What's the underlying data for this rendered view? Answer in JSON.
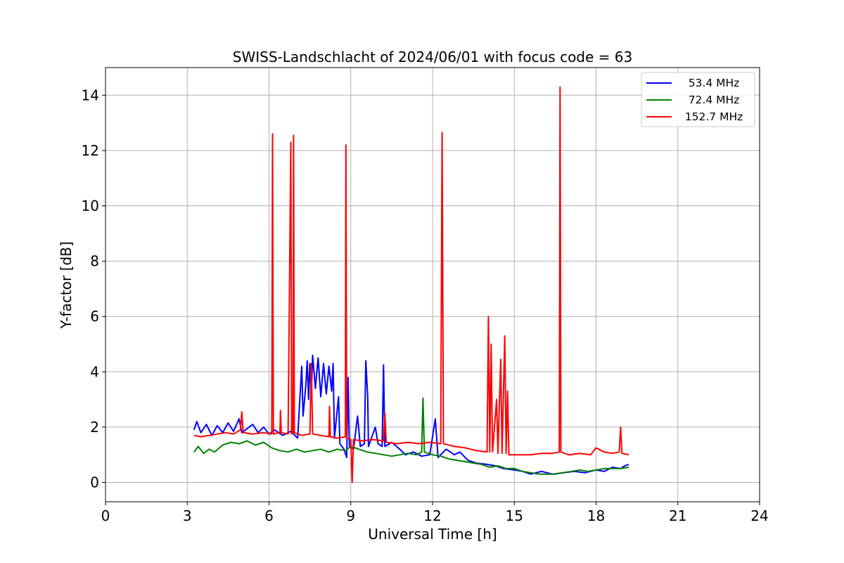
{
  "chart_data": {
    "type": "line",
    "title": "SWISS-Landschlacht of 2024/06/01 with focus code = 63",
    "xlabel": "Universal Time [h]",
    "ylabel": "Y-factor [dB]",
    "xlim": [
      0,
      24
    ],
    "ylim": [
      -0.7,
      15
    ],
    "xticks": [
      0,
      3,
      6,
      9,
      12,
      15,
      18,
      21,
      24
    ],
    "yticks": [
      0,
      2,
      4,
      6,
      8,
      10,
      12,
      14
    ],
    "grid": true,
    "legend_position": "top-right",
    "series": [
      {
        "name": " 53.4 MHz",
        "color": "#0000ff",
        "points": [
          [
            3.25,
            1.9
          ],
          [
            3.35,
            2.2
          ],
          [
            3.5,
            1.8
          ],
          [
            3.7,
            2.1
          ],
          [
            3.9,
            1.7
          ],
          [
            4.1,
            2.05
          ],
          [
            4.3,
            1.8
          ],
          [
            4.5,
            2.15
          ],
          [
            4.7,
            1.85
          ],
          [
            4.9,
            2.3
          ],
          [
            5.0,
            1.8
          ],
          [
            5.2,
            1.95
          ],
          [
            5.4,
            2.1
          ],
          [
            5.6,
            1.8
          ],
          [
            5.8,
            2.0
          ],
          [
            6.0,
            1.75
          ],
          [
            6.2,
            1.9
          ],
          [
            6.5,
            1.7
          ],
          [
            6.8,
            1.85
          ],
          [
            7.05,
            1.6
          ],
          [
            7.2,
            4.2
          ],
          [
            7.25,
            2.4
          ],
          [
            7.35,
            3.5
          ],
          [
            7.4,
            4.4
          ],
          [
            7.45,
            3.0
          ],
          [
            7.5,
            4.3
          ],
          [
            7.55,
            3.2
          ],
          [
            7.6,
            4.6
          ],
          [
            7.7,
            3.4
          ],
          [
            7.8,
            4.5
          ],
          [
            7.9,
            3.1
          ],
          [
            8.0,
            4.3
          ],
          [
            8.1,
            3.2
          ],
          [
            8.2,
            4.2
          ],
          [
            8.3,
            3.3
          ],
          [
            8.35,
            4.3
          ],
          [
            8.4,
            1.6
          ],
          [
            8.55,
            3.1
          ],
          [
            8.6,
            1.4
          ],
          [
            8.75,
            1.2
          ],
          [
            8.85,
            0.9
          ],
          [
            8.9,
            3.8
          ],
          [
            8.95,
            1.3
          ],
          [
            9.1,
            1.2
          ],
          [
            9.25,
            2.4
          ],
          [
            9.35,
            1.3
          ],
          [
            9.5,
            1.4
          ],
          [
            9.55,
            4.4
          ],
          [
            9.62,
            3.1
          ],
          [
            9.65,
            1.3
          ],
          [
            9.9,
            2.0
          ],
          [
            10.0,
            1.4
          ],
          [
            10.15,
            1.3
          ],
          [
            10.2,
            4.25
          ],
          [
            10.25,
            1.3
          ],
          [
            10.5,
            1.45
          ],
          [
            10.8,
            1.2
          ],
          [
            11.0,
            1.0
          ],
          [
            11.3,
            1.1
          ],
          [
            11.6,
            0.95
          ],
          [
            11.9,
            1.0
          ],
          [
            12.1,
            2.3
          ],
          [
            12.2,
            0.9
          ],
          [
            12.5,
            1.2
          ],
          [
            12.8,
            1.0
          ],
          [
            13.0,
            1.1
          ],
          [
            13.3,
            0.8
          ],
          [
            13.6,
            0.7
          ],
          [
            14.0,
            0.65
          ],
          [
            14.3,
            0.6
          ],
          [
            14.6,
            0.5
          ],
          [
            15.0,
            0.45
          ],
          [
            15.3,
            0.4
          ],
          [
            15.6,
            0.3
          ],
          [
            16.0,
            0.4
          ],
          [
            16.4,
            0.3
          ],
          [
            16.8,
            0.35
          ],
          [
            17.2,
            0.4
          ],
          [
            17.6,
            0.35
          ],
          [
            18.0,
            0.45
          ],
          [
            18.3,
            0.4
          ],
          [
            18.6,
            0.55
          ],
          [
            18.9,
            0.5
          ],
          [
            19.05,
            0.6
          ],
          [
            19.2,
            0.65
          ]
        ]
      },
      {
        "name": " 72.4 MHz",
        "color": "#008000",
        "points": [
          [
            3.25,
            1.1
          ],
          [
            3.4,
            1.3
          ],
          [
            3.6,
            1.05
          ],
          [
            3.8,
            1.2
          ],
          [
            4.0,
            1.1
          ],
          [
            4.3,
            1.35
          ],
          [
            4.6,
            1.45
          ],
          [
            4.9,
            1.4
          ],
          [
            5.2,
            1.5
          ],
          [
            5.5,
            1.35
          ],
          [
            5.8,
            1.45
          ],
          [
            6.1,
            1.25
          ],
          [
            6.4,
            1.15
          ],
          [
            6.7,
            1.1
          ],
          [
            7.0,
            1.2
          ],
          [
            7.3,
            1.1
          ],
          [
            7.6,
            1.15
          ],
          [
            7.9,
            1.2
          ],
          [
            8.2,
            1.1
          ],
          [
            8.5,
            1.2
          ],
          [
            8.8,
            1.15
          ],
          [
            9.0,
            1.3
          ],
          [
            9.3,
            1.2
          ],
          [
            9.6,
            1.1
          ],
          [
            9.9,
            1.05
          ],
          [
            10.2,
            1.0
          ],
          [
            10.5,
            0.95
          ],
          [
            10.8,
            1.0
          ],
          [
            11.1,
            1.05
          ],
          [
            11.4,
            1.0
          ],
          [
            11.6,
            1.1
          ],
          [
            11.65,
            3.05
          ],
          [
            11.7,
            1.1
          ],
          [
            12.0,
            1.0
          ],
          [
            12.3,
            0.95
          ],
          [
            12.6,
            0.85
          ],
          [
            12.9,
            0.8
          ],
          [
            13.2,
            0.75
          ],
          [
            13.5,
            0.7
          ],
          [
            13.8,
            0.65
          ],
          [
            14.1,
            0.55
          ],
          [
            14.4,
            0.6
          ],
          [
            14.7,
            0.5
          ],
          [
            15.0,
            0.5
          ],
          [
            15.3,
            0.4
          ],
          [
            15.6,
            0.35
          ],
          [
            15.9,
            0.3
          ],
          [
            16.2,
            0.3
          ],
          [
            16.5,
            0.3
          ],
          [
            16.8,
            0.35
          ],
          [
            17.1,
            0.4
          ],
          [
            17.4,
            0.45
          ],
          [
            17.7,
            0.4
          ],
          [
            18.0,
            0.45
          ],
          [
            18.3,
            0.5
          ],
          [
            18.6,
            0.5
          ],
          [
            18.9,
            0.5
          ],
          [
            19.2,
            0.55
          ]
        ]
      },
      {
        "name": "152.7 MHz",
        "color": "#ff0000",
        "points": [
          [
            3.25,
            1.7
          ],
          [
            3.5,
            1.65
          ],
          [
            3.8,
            1.7
          ],
          [
            4.1,
            1.75
          ],
          [
            4.4,
            1.8
          ],
          [
            4.7,
            1.75
          ],
          [
            4.95,
            1.9
          ],
          [
            5.0,
            2.55
          ],
          [
            5.05,
            1.8
          ],
          [
            5.4,
            1.75
          ],
          [
            5.8,
            1.8
          ],
          [
            6.1,
            1.75
          ],
          [
            6.13,
            12.6
          ],
          [
            6.16,
            1.75
          ],
          [
            6.4,
            1.8
          ],
          [
            6.42,
            2.6
          ],
          [
            6.45,
            1.8
          ],
          [
            6.7,
            1.75
          ],
          [
            6.8,
            12.3
          ],
          [
            6.83,
            1.75
          ],
          [
            6.88,
            1.8
          ],
          [
            6.9,
            12.55
          ],
          [
            6.93,
            1.8
          ],
          [
            7.2,
            1.7
          ],
          [
            7.5,
            1.75
          ],
          [
            7.55,
            4.3
          ],
          [
            7.6,
            1.75
          ],
          [
            7.9,
            1.7
          ],
          [
            8.2,
            1.65
          ],
          [
            8.22,
            2.75
          ],
          [
            8.25,
            1.65
          ],
          [
            8.5,
            1.6
          ],
          [
            8.8,
            1.65
          ],
          [
            8.82,
            12.2
          ],
          [
            8.85,
            1.6
          ],
          [
            9.0,
            1.55
          ],
          [
            9.05,
            0.0
          ],
          [
            9.1,
            1.55
          ],
          [
            9.4,
            1.5
          ],
          [
            9.8,
            1.55
          ],
          [
            10.2,
            1.5
          ],
          [
            10.25,
            2.5
          ],
          [
            10.3,
            1.45
          ],
          [
            10.7,
            1.4
          ],
          [
            11.1,
            1.45
          ],
          [
            11.5,
            1.4
          ],
          [
            11.9,
            1.45
          ],
          [
            12.3,
            1.4
          ],
          [
            12.35,
            12.65
          ],
          [
            12.4,
            1.4
          ],
          [
            12.8,
            1.3
          ],
          [
            13.2,
            1.25
          ],
          [
            13.6,
            1.15
          ],
          [
            14.0,
            1.1
          ],
          [
            14.05,
            6.0
          ],
          [
            14.1,
            1.1
          ],
          [
            14.15,
            5.0
          ],
          [
            14.2,
            1.1
          ],
          [
            14.35,
            3.0
          ],
          [
            14.4,
            1.05
          ],
          [
            14.5,
            4.45
          ],
          [
            14.55,
            1.05
          ],
          [
            14.65,
            5.3
          ],
          [
            14.7,
            1.05
          ],
          [
            14.75,
            3.3
          ],
          [
            14.8,
            1.0
          ],
          [
            15.2,
            1.0
          ],
          [
            15.6,
            1.0
          ],
          [
            16.0,
            1.05
          ],
          [
            16.4,
            1.05
          ],
          [
            16.65,
            1.1
          ],
          [
            16.68,
            14.3
          ],
          [
            16.71,
            1.1
          ],
          [
            17.0,
            1.0
          ],
          [
            17.4,
            1.05
          ],
          [
            17.8,
            1.0
          ],
          [
            18.0,
            1.25
          ],
          [
            18.3,
            1.1
          ],
          [
            18.6,
            1.05
          ],
          [
            18.85,
            1.1
          ],
          [
            18.9,
            2.0
          ],
          [
            18.95,
            1.05
          ],
          [
            19.2,
            1.0
          ]
        ]
      }
    ]
  }
}
